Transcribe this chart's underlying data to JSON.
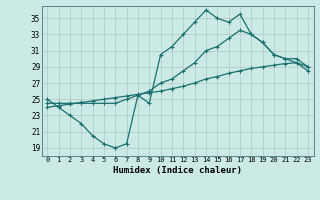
{
  "xlabel": "Humidex (Indice chaleur)",
  "ylabel": "",
  "xlim": [
    -0.5,
    23.5
  ],
  "ylim": [
    18.0,
    36.5
  ],
  "yticks": [
    19,
    21,
    23,
    25,
    27,
    29,
    31,
    33,
    35
  ],
  "xticks": [
    0,
    1,
    2,
    3,
    4,
    5,
    6,
    7,
    8,
    9,
    10,
    11,
    12,
    13,
    14,
    15,
    16,
    17,
    18,
    19,
    20,
    21,
    22,
    23
  ],
  "bg_color": "#cceae5",
  "line_color": "#1a7070",
  "grid_color": "#b0c8c4",
  "line1_x": [
    0,
    1,
    2,
    3,
    4,
    5,
    6,
    7,
    8,
    9,
    10,
    11,
    12,
    13,
    14,
    15,
    16,
    17,
    18,
    19,
    20,
    21,
    22,
    23
  ],
  "line1_y": [
    25,
    24,
    23,
    22,
    20.5,
    19.5,
    19,
    19.5,
    25.5,
    24.5,
    30.5,
    31.5,
    33.0,
    34.5,
    36.0,
    35.0,
    34.5,
    35.5,
    33.0,
    32.0,
    30.5,
    30.0,
    30.0,
    29.0
  ],
  "line2_x": [
    0,
    1,
    2,
    3,
    4,
    5,
    6,
    7,
    8,
    9,
    10,
    11,
    12,
    13,
    14,
    15,
    16,
    17,
    18,
    19,
    20,
    21,
    22,
    23
  ],
  "line2_y": [
    24.5,
    24.5,
    24.5,
    24.5,
    24.5,
    24.5,
    24.5,
    25.0,
    25.5,
    26.0,
    27.0,
    27.5,
    28.5,
    29.5,
    31.0,
    31.5,
    32.5,
    33.5,
    33.0,
    32.0,
    30.5,
    30.0,
    29.5,
    28.5
  ],
  "line3_x": [
    0,
    1,
    2,
    3,
    4,
    5,
    6,
    7,
    8,
    9,
    10,
    11,
    12,
    13,
    14,
    15,
    16,
    17,
    18,
    19,
    20,
    21,
    22,
    23
  ],
  "line3_y": [
    24.0,
    24.2,
    24.4,
    24.6,
    24.8,
    25.0,
    25.2,
    25.4,
    25.6,
    25.8,
    26.0,
    26.3,
    26.6,
    27.0,
    27.5,
    27.8,
    28.2,
    28.5,
    28.8,
    29.0,
    29.2,
    29.4,
    29.5,
    29.0
  ]
}
